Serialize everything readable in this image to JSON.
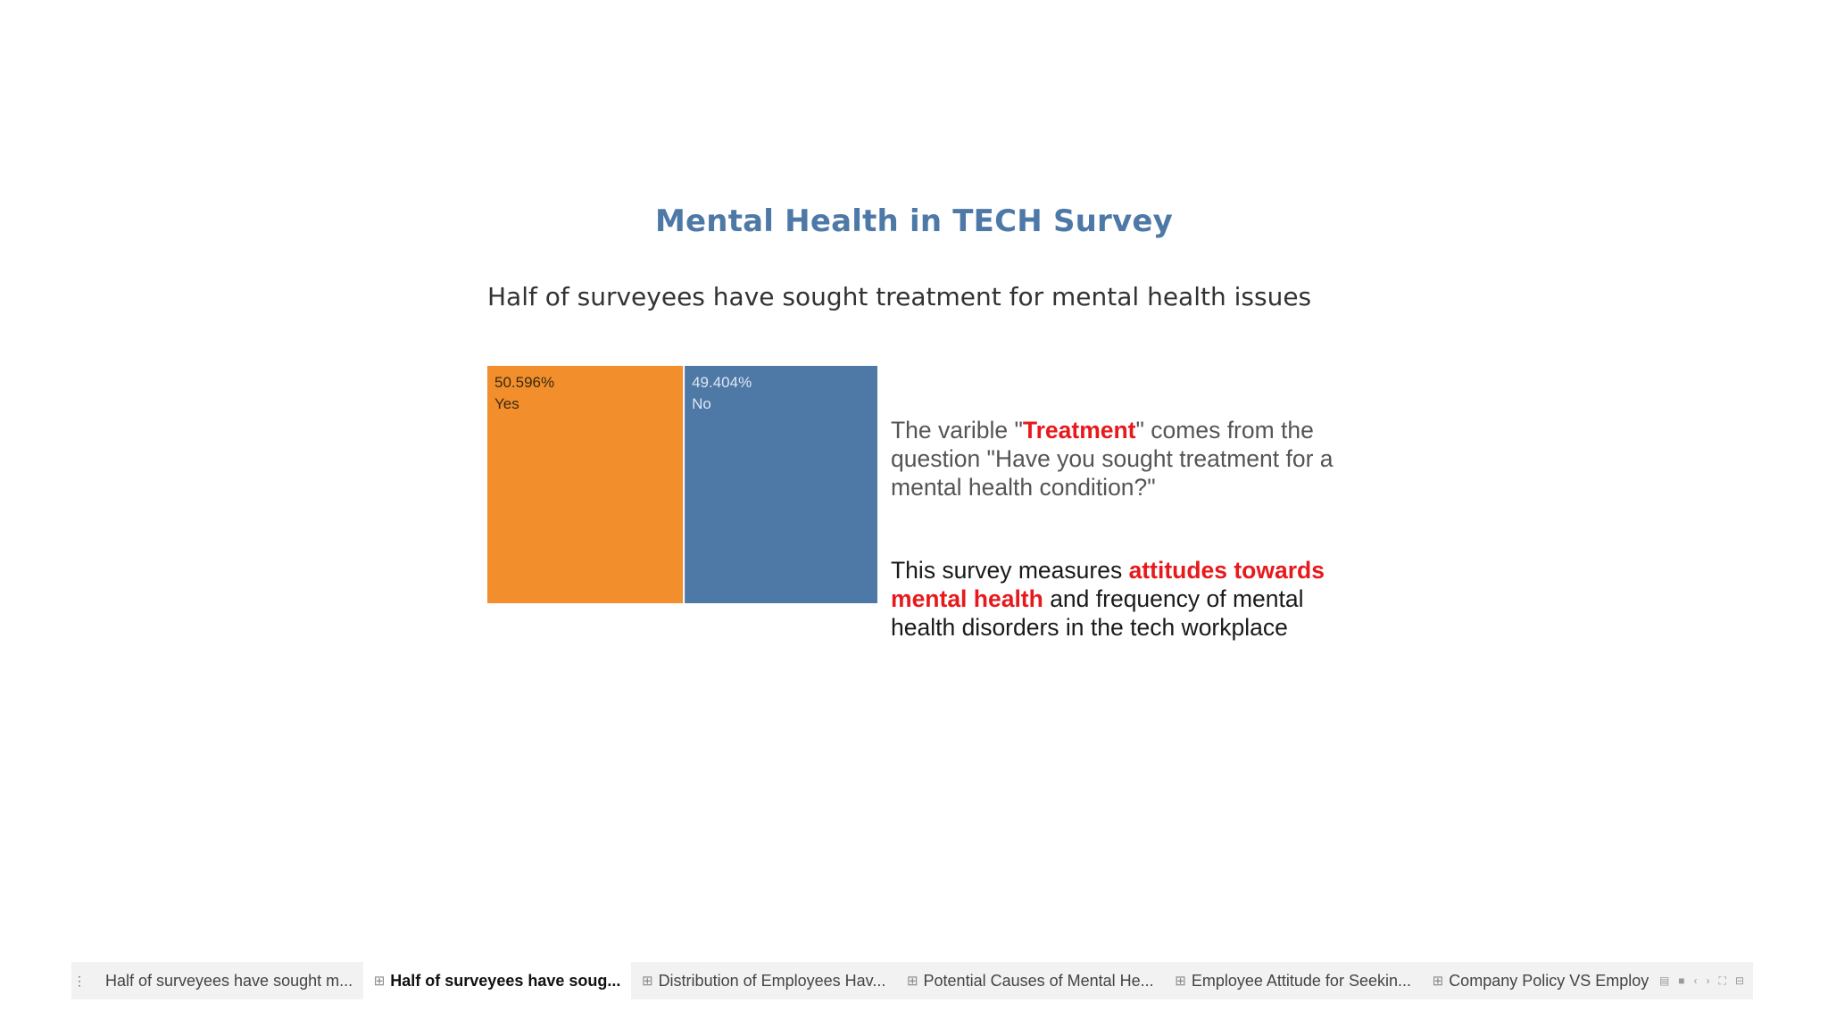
{
  "title": "Mental Health in TECH Survey",
  "subtitle": "Half of surveyees have sought treatment for mental health issues",
  "chart_data": {
    "type": "treemap",
    "categories": [
      "Yes",
      "No"
    ],
    "values": [
      50.596,
      49.404
    ],
    "value_labels": [
      "50.596%",
      "49.404%"
    ],
    "colors": [
      "#f28e2b",
      "#4e79a7"
    ]
  },
  "notes": {
    "treatment": {
      "pre": "The varible \"",
      "highlight": "Treatment",
      "post": "\" comes from the question \"Have you sought treatment for a mental health condition?\""
    },
    "survey": {
      "pre": "This survey measures ",
      "highlight": "attitudes towards mental health",
      "post": " and frequency of mental health disorders in the tech workplace"
    }
  },
  "tabs": [
    {
      "label": "Half of surveyees have sought m...",
      "icon": "",
      "active": false
    },
    {
      "label": "Half of surveyees have soug...",
      "icon": "⊞",
      "active": true
    },
    {
      "label": "Distribution of Employees Hav...",
      "icon": "⊞",
      "active": false
    },
    {
      "label": "Potential Causes of Mental He...",
      "icon": "⊞",
      "active": false
    },
    {
      "label": "Employee Attitude for Seekin...",
      "icon": "⊞",
      "active": false
    },
    {
      "label": "Company Policy VS Employ",
      "icon": "⊞",
      "active": false
    }
  ],
  "tab_controls": [
    "▤",
    "■",
    "‹",
    "›",
    "⛶",
    "⊟"
  ]
}
